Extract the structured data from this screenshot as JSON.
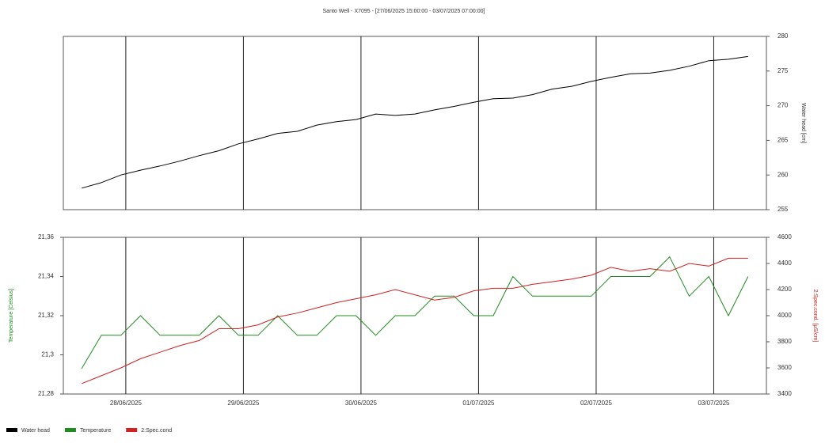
{
  "chart_data": [
    {
      "type": "line",
      "title": "Santo Well - X7095 - [27/06/2025 15:00:00 - 03/07/2025 07:00:00]",
      "ylabel": "Water head [cm]",
      "y_axis_position": "right",
      "x": [
        "27/06/2025 15:00",
        "27/06/2025 19:00",
        "27/06/2025 23:00",
        "28/06/2025 03:00",
        "28/06/2025 07:00",
        "28/06/2025 11:00",
        "28/06/2025 15:00",
        "28/06/2025 19:00",
        "28/06/2025 23:00",
        "29/06/2025 03:00",
        "29/06/2025 07:00",
        "29/06/2025 11:00",
        "29/06/2025 15:00",
        "29/06/2025 19:00",
        "29/06/2025 23:00",
        "30/06/2025 03:00",
        "30/06/2025 07:00",
        "30/06/2025 11:00",
        "30/06/2025 15:00",
        "30/06/2025 19:00",
        "30/06/2025 23:00",
        "01/07/2025 03:00",
        "01/07/2025 07:00",
        "01/07/2025 11:00",
        "01/07/2025 15:00",
        "01/07/2025 19:00",
        "01/07/2025 23:00",
        "02/07/2025 03:00",
        "02/07/2025 07:00",
        "02/07/2025 11:00",
        "02/07/2025 15:00",
        "02/07/2025 19:00",
        "02/07/2025 23:00",
        "03/07/2025 03:00",
        "03/07/2025 07:00"
      ],
      "xlim": [
        "27/06/2025 11:15",
        "03/07/2025 10:45"
      ],
      "ylim": [
        255,
        280
      ],
      "yticks": [
        255,
        260,
        265,
        270,
        275,
        280
      ],
      "series": [
        {
          "name": "Water head",
          "color": "#000000",
          "values": [
            258.1,
            258.9,
            260.0,
            260.7,
            261.3,
            262.0,
            262.8,
            263.5,
            264.5,
            265.2,
            266.0,
            266.3,
            267.2,
            267.7,
            268.0,
            268.8,
            268.6,
            268.8,
            269.4,
            269.9,
            270.5,
            271.0,
            271.1,
            271.6,
            272.4,
            272.8,
            273.5,
            274.1,
            274.6,
            274.7,
            275.1,
            275.7,
            276.5,
            276.7,
            277.1
          ]
        }
      ]
    },
    {
      "type": "line",
      "ylabel": "Temperature [Celsius]",
      "y2label": "2:Spec.cond. [µS/cm]",
      "x": [
        "27/06/2025 15:00",
        "27/06/2025 19:00",
        "27/06/2025 23:00",
        "28/06/2025 03:00",
        "28/06/2025 07:00",
        "28/06/2025 11:00",
        "28/06/2025 15:00",
        "28/06/2025 19:00",
        "28/06/2025 23:00",
        "29/06/2025 03:00",
        "29/06/2025 07:00",
        "29/06/2025 11:00",
        "29/06/2025 15:00",
        "29/06/2025 19:00",
        "29/06/2025 23:00",
        "30/06/2025 03:00",
        "30/06/2025 07:00",
        "30/06/2025 11:00",
        "30/06/2025 15:00",
        "30/06/2025 19:00",
        "30/06/2025 23:00",
        "01/07/2025 03:00",
        "01/07/2025 07:00",
        "01/07/2025 11:00",
        "01/07/2025 15:00",
        "01/07/2025 19:00",
        "01/07/2025 23:00",
        "02/07/2025 03:00",
        "02/07/2025 07:00",
        "02/07/2025 11:00",
        "02/07/2025 15:00",
        "02/07/2025 19:00",
        "02/07/2025 23:00",
        "03/07/2025 03:00",
        "03/07/2025 07:00"
      ],
      "xlim": [
        "27/06/2025 11:15",
        "03/07/2025 10:45"
      ],
      "xticks": [
        {
          "value": "28/06/2025 00:00",
          "label": "28/06/2025"
        },
        {
          "value": "29/06/2025 00:00",
          "label": "29/06/2025"
        },
        {
          "value": "30/06/2025 00:00",
          "label": "30/06/2025"
        },
        {
          "value": "01/07/2025 00:00",
          "label": "01/07/2025"
        },
        {
          "value": "02/07/2025 00:00",
          "label": "02/07/2025"
        },
        {
          "value": "03/07/2025 00:00",
          "label": "03/07/2025"
        }
      ],
      "ylim": [
        21.28,
        21.36
      ],
      "yticks": [
        {
          "value": 21.28,
          "label": "21,28"
        },
        {
          "value": 21.3,
          "label": "21,3"
        },
        {
          "value": 21.32,
          "label": "21,32"
        },
        {
          "value": 21.34,
          "label": "21,34"
        },
        {
          "value": 21.36,
          "label": "21,36"
        }
      ],
      "y2lim": [
        3400,
        4600
      ],
      "y2ticks": [
        3400,
        3600,
        3800,
        4000,
        4200,
        4400,
        4600
      ],
      "series": [
        {
          "name": "Temperature",
          "color": "#1e8c1e",
          "values": [
            21.293,
            21.31,
            21.31,
            21.32,
            21.31,
            21.31,
            21.31,
            21.32,
            21.31,
            21.31,
            21.32,
            21.31,
            21.31,
            21.32,
            21.32,
            21.31,
            21.32,
            21.32,
            21.33,
            21.33,
            21.32,
            21.32,
            21.34,
            21.33,
            21.33,
            21.33,
            21.33,
            21.34,
            21.34,
            21.34,
            21.35,
            21.33,
            21.34,
            21.32,
            21.34
          ]
        },
        {
          "name": "2:Spec.cond",
          "color": "#d02020",
          "axis": "y2",
          "values": [
            3480,
            3540,
            3600,
            3670,
            3720,
            3770,
            3810,
            3900,
            3900,
            3930,
            3990,
            4020,
            4060,
            4100,
            4130,
            4160,
            4200,
            4160,
            4120,
            4140,
            4190,
            4210,
            4210,
            4240,
            4260,
            4280,
            4310,
            4370,
            4340,
            4360,
            4340,
            4400,
            4380,
            4440,
            4440
          ]
        }
      ]
    }
  ]
}
